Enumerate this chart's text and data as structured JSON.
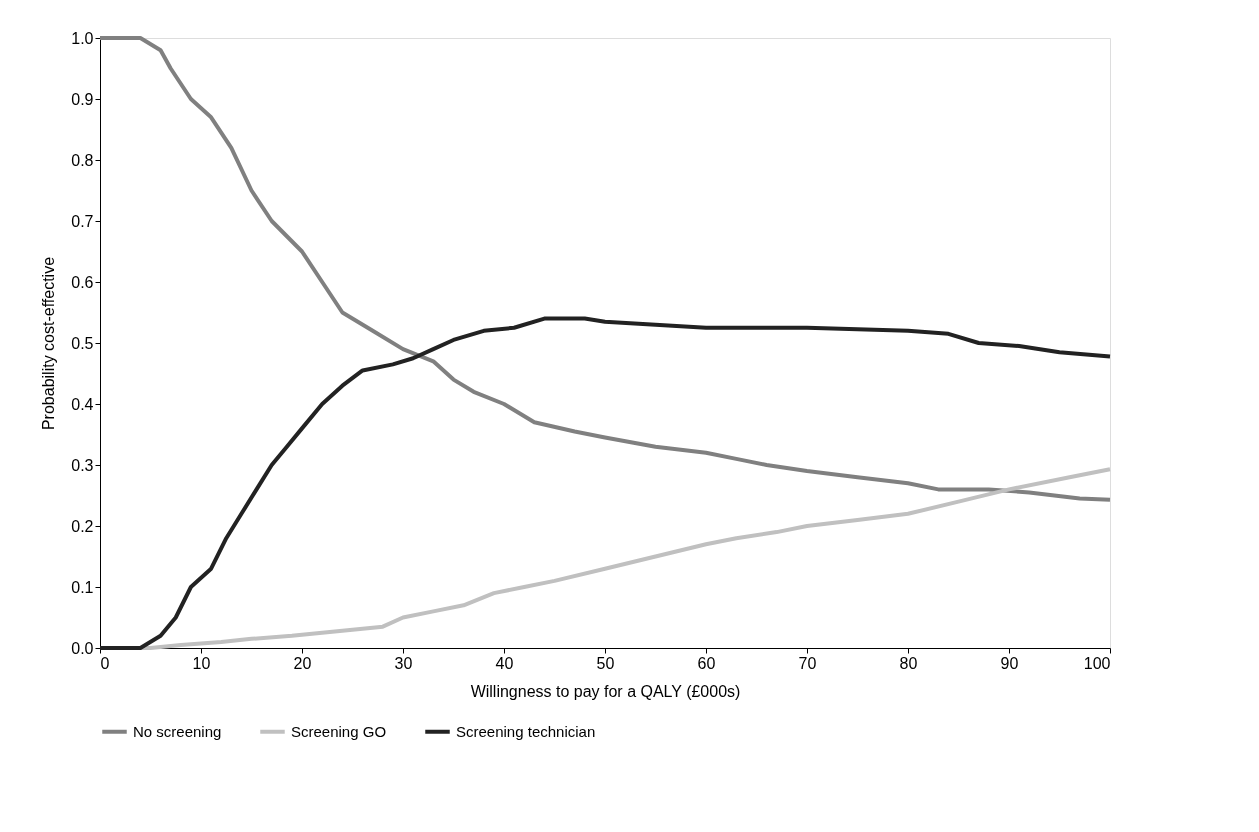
{
  "chart_data": {
    "type": "line",
    "xlabel": "Willingness to pay for a QALY (£000s)",
    "ylabel": "Probability cost-effective",
    "xlim": [
      0,
      100
    ],
    "xticks": [
      0,
      10,
      20,
      30,
      40,
      50,
      60,
      70,
      80,
      90,
      100
    ],
    "ylim": [
      0,
      1
    ],
    "yticks": [
      {
        "value": 0,
        "label": "0.0"
      },
      {
        "value": 0.1,
        "label": "0.1"
      },
      {
        "value": 0.2,
        "label": "0.2"
      },
      {
        "value": 0.3,
        "label": "0.3"
      },
      {
        "value": 0.4,
        "label": "0.4"
      },
      {
        "value": 0.5,
        "label": "0.5"
      },
      {
        "value": 0.6,
        "label": "0.6"
      },
      {
        "value": 0.7,
        "label": "0.7"
      },
      {
        "value": 0.8,
        "label": "0.8"
      },
      {
        "value": 0.9,
        "label": "0.9"
      },
      {
        "value": 1,
        "label": "1.0"
      }
    ],
    "grid": false,
    "legend": "bottom",
    "marker": "none",
    "line_style": "solid",
    "series": [
      {
        "name": "No screening",
        "color": "#808080",
        "x": [
          0,
          4,
          6,
          7,
          9,
          11,
          13,
          15,
          17,
          20,
          22,
          24,
          27,
          30,
          33,
          35,
          37,
          40,
          43,
          47,
          50,
          55,
          60,
          63,
          66,
          70,
          75,
          80,
          83,
          88,
          92,
          97,
          100
        ],
        "values": [
          1.0,
          1.0,
          0.98,
          0.95,
          0.9,
          0.87,
          0.82,
          0.75,
          0.7,
          0.65,
          0.6,
          0.55,
          0.52,
          0.49,
          0.47,
          0.44,
          0.42,
          0.4,
          0.37,
          0.355,
          0.345,
          0.33,
          0.32,
          0.31,
          0.3,
          0.29,
          0.28,
          0.27,
          0.26,
          0.26,
          0.255,
          0.245,
          0.243
        ]
      },
      {
        "name": "Screening GO",
        "color": "#c0c0c0",
        "x": [
          0,
          5,
          8,
          12,
          15,
          19,
          22,
          25,
          28,
          30,
          33,
          36,
          39,
          42,
          45,
          50,
          55,
          60,
          63,
          67,
          70,
          75,
          80,
          85,
          90,
          96,
          100
        ],
        "values": [
          0,
          0,
          0.005,
          0.01,
          0.015,
          0.02,
          0.025,
          0.03,
          0.035,
          0.05,
          0.06,
          0.07,
          0.09,
          0.1,
          0.11,
          0.13,
          0.15,
          0.17,
          0.18,
          0.19,
          0.2,
          0.21,
          0.22,
          0.24,
          0.26,
          0.28,
          0.293
        ]
      },
      {
        "name": "Screening technician",
        "color": "#222222",
        "x": [
          0,
          4,
          6,
          7.5,
          9,
          11,
          12.5,
          14,
          15.5,
          17,
          18.5,
          20,
          22,
          24,
          26,
          29,
          31,
          33,
          35,
          38,
          41,
          44,
          48,
          50,
          55,
          60,
          70,
          80,
          84,
          87,
          91,
          95,
          100
        ],
        "values": [
          0,
          0,
          0.02,
          0.05,
          0.1,
          0.13,
          0.18,
          0.22,
          0.26,
          0.3,
          0.33,
          0.36,
          0.4,
          0.43,
          0.455,
          0.465,
          0.475,
          0.49,
          0.505,
          0.52,
          0.525,
          0.54,
          0.54,
          0.535,
          0.53,
          0.525,
          0.525,
          0.52,
          0.515,
          0.5,
          0.495,
          0.485,
          0.478
        ]
      }
    ]
  }
}
